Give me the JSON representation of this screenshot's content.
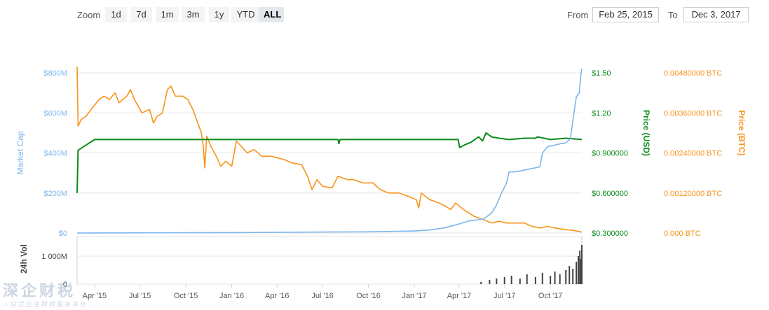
{
  "toolbar": {
    "zoom_label": "Zoom",
    "zoom_buttons": [
      "1d",
      "7d",
      "1m",
      "3m",
      "1y",
      "YTD",
      "ALL"
    ],
    "active_zoom": "ALL",
    "from_label": "From",
    "from_value": "Feb 25, 2015",
    "to_label": "To",
    "to_value": "Dec 3, 2017"
  },
  "watermark": {
    "big": "深企财税",
    "small": "一站式企业财税服务平台"
  },
  "chart_data": {
    "type": "line",
    "x_start": "2015-02-25",
    "x_end": "2017-12-03",
    "x_ticks": [
      {
        "date": "2015-04-01",
        "label": "Apr '15"
      },
      {
        "date": "2015-07-01",
        "label": "Jul '15"
      },
      {
        "date": "2015-10-01",
        "label": "Oct '15"
      },
      {
        "date": "2016-01-01",
        "label": "Jan '16"
      },
      {
        "date": "2016-04-01",
        "label": "Apr '16"
      },
      {
        "date": "2016-07-01",
        "label": "Jul '16"
      },
      {
        "date": "2016-10-01",
        "label": "Oct '16"
      },
      {
        "date": "2017-01-01",
        "label": "Jan '17"
      },
      {
        "date": "2017-04-01",
        "label": "Apr '17"
      },
      {
        "date": "2017-07-01",
        "label": "Jul '17"
      },
      {
        "date": "2017-10-01",
        "label": "Oct '17"
      }
    ],
    "axes": {
      "market_cap": {
        "title": "Market Cap",
        "color": "#7cb5ec",
        "min": 0,
        "max": 800000000,
        "ticks": [
          {
            "value": 0,
            "label": "$0"
          },
          {
            "value": 200000000,
            "label": "$200M"
          },
          {
            "value": 400000000,
            "label": "$400M"
          },
          {
            "value": 600000000,
            "label": "$600M"
          },
          {
            "value": 800000000,
            "label": "$800M"
          }
        ]
      },
      "price_usd": {
        "title": "Price (USD)",
        "color": "#0c8a19",
        "min": 0.3,
        "max": 1.5,
        "ticks": [
          {
            "value": 0.3,
            "label": "$0.300000"
          },
          {
            "value": 0.6,
            "label": "$0.600000"
          },
          {
            "value": 0.9,
            "label": "$0.900000"
          },
          {
            "value": 1.2,
            "label": "$1.20"
          },
          {
            "value": 1.5,
            "label": "$1.50"
          }
        ]
      },
      "price_btc": {
        "title": "Price (BTC)",
        "color": "#f7931a",
        "min": 0,
        "max": 0.0048,
        "ticks": [
          {
            "value": 0,
            "label": "0.000 BTC"
          },
          {
            "value": 0.0012,
            "label": "0.00120000 BTC"
          },
          {
            "value": 0.0024,
            "label": "0.00240000 BTC"
          },
          {
            "value": 0.0036,
            "label": "0.00360000 BTC"
          },
          {
            "value": 0.0048,
            "label": "0.00480000 BTC"
          }
        ]
      },
      "volume": {
        "title": "24h Vol",
        "color": "#444444",
        "min": 0,
        "max": 1500000000,
        "ticks": [
          {
            "value": 0,
            "label": "0"
          },
          {
            "value": 1000000000,
            "label": "1 000M"
          }
        ]
      }
    },
    "series": [
      {
        "key": "price_btc",
        "color": "#f7931a",
        "points": [
          [
            "2015-02-25",
            0.00498
          ],
          [
            "2015-02-27",
            0.0032
          ],
          [
            "2015-03-05",
            0.0034
          ],
          [
            "2015-03-15",
            0.0035
          ],
          [
            "2015-03-25",
            0.0037
          ],
          [
            "2015-04-10",
            0.004
          ],
          [
            "2015-04-20",
            0.0041
          ],
          [
            "2015-05-01",
            0.004
          ],
          [
            "2015-05-12",
            0.0042
          ],
          [
            "2015-05-20",
            0.0039
          ],
          [
            "2015-06-05",
            0.0041
          ],
          [
            "2015-06-12",
            0.0043
          ],
          [
            "2015-06-20",
            0.004
          ],
          [
            "2015-07-05",
            0.0036
          ],
          [
            "2015-07-20",
            0.0037
          ],
          [
            "2015-07-28",
            0.0033
          ],
          [
            "2015-08-05",
            0.0035
          ],
          [
            "2015-08-15",
            0.0036
          ],
          [
            "2015-08-25",
            0.0043
          ],
          [
            "2015-09-01",
            0.0044
          ],
          [
            "2015-09-10",
            0.0041
          ],
          [
            "2015-09-25",
            0.0041
          ],
          [
            "2015-10-05",
            0.004
          ],
          [
            "2015-10-15",
            0.0037
          ],
          [
            "2015-10-25",
            0.0033
          ],
          [
            "2015-11-01",
            0.003
          ],
          [
            "2015-11-05",
            0.0026
          ],
          [
            "2015-11-08",
            0.00195
          ],
          [
            "2015-11-12",
            0.0029
          ],
          [
            "2015-11-20",
            0.0026
          ],
          [
            "2015-12-01",
            0.0023
          ],
          [
            "2015-12-10",
            0.002
          ],
          [
            "2015-12-20",
            0.00215
          ],
          [
            "2016-01-01",
            0.002
          ],
          [
            "2016-01-10",
            0.00275
          ],
          [
            "2016-01-20",
            0.0026
          ],
          [
            "2016-02-01",
            0.0024
          ],
          [
            "2016-02-15",
            0.0025
          ],
          [
            "2016-03-01",
            0.0023
          ],
          [
            "2016-03-20",
            0.0023
          ],
          [
            "2016-04-15",
            0.0022
          ],
          [
            "2016-05-01",
            0.0021
          ],
          [
            "2016-05-20",
            0.00205
          ],
          [
            "2016-06-01",
            0.0017
          ],
          [
            "2016-06-10",
            0.0013
          ],
          [
            "2016-06-20",
            0.0016
          ],
          [
            "2016-07-01",
            0.0014
          ],
          [
            "2016-07-20",
            0.00135
          ],
          [
            "2016-08-01",
            0.0017
          ],
          [
            "2016-08-20",
            0.0016
          ],
          [
            "2016-09-01",
            0.0016
          ],
          [
            "2016-09-20",
            0.0015
          ],
          [
            "2016-10-10",
            0.0015
          ],
          [
            "2016-10-25",
            0.0013
          ],
          [
            "2016-11-10",
            0.0012
          ],
          [
            "2016-12-01",
            0.0012
          ],
          [
            "2016-12-20",
            0.0011
          ],
          [
            "2017-01-05",
            0.001
          ],
          [
            "2017-01-10",
            0.00075
          ],
          [
            "2017-01-15",
            0.0012
          ],
          [
            "2017-02-01",
            0.001
          ],
          [
            "2017-02-20",
            0.0009
          ],
          [
            "2017-03-05",
            0.0008
          ],
          [
            "2017-03-15",
            0.0007
          ],
          [
            "2017-03-25",
            0.0009
          ],
          [
            "2017-04-10",
            0.0007
          ],
          [
            "2017-05-01",
            0.0005
          ],
          [
            "2017-05-20",
            0.0004
          ],
          [
            "2017-06-05",
            0.0003
          ],
          [
            "2017-06-20",
            0.00035
          ],
          [
            "2017-07-05",
            0.0003
          ],
          [
            "2017-07-20",
            0.0003
          ],
          [
            "2017-08-10",
            0.0003
          ],
          [
            "2017-08-25",
            0.0002
          ],
          [
            "2017-09-10",
            0.00015
          ],
          [
            "2017-09-25",
            0.0002
          ],
          [
            "2017-10-10",
            0.00015
          ],
          [
            "2017-11-01",
            0.0001
          ],
          [
            "2017-11-15",
            8e-05
          ],
          [
            "2017-12-03",
            3e-05
          ]
        ]
      },
      {
        "key": "price_usd",
        "color": "#0c8a19",
        "points": [
          [
            "2015-02-25",
            0.6
          ],
          [
            "2015-02-27",
            0.92
          ],
          [
            "2015-04-01",
            1.0
          ],
          [
            "2015-07-01",
            1.0
          ],
          [
            "2015-10-01",
            1.0
          ],
          [
            "2016-01-01",
            1.0
          ],
          [
            "2016-04-01",
            1.0
          ],
          [
            "2016-07-01",
            1.0
          ],
          [
            "2016-08-01",
            1.0
          ],
          [
            "2016-08-03",
            0.97
          ],
          [
            "2016-08-05",
            1.0
          ],
          [
            "2016-10-01",
            1.0
          ],
          [
            "2017-01-01",
            1.0
          ],
          [
            "2017-03-01",
            1.0
          ],
          [
            "2017-03-30",
            1.0
          ],
          [
            "2017-04-02",
            0.94
          ],
          [
            "2017-04-12",
            0.96
          ],
          [
            "2017-04-25",
            0.98
          ],
          [
            "2017-05-10",
            1.02
          ],
          [
            "2017-05-18",
            0.99
          ],
          [
            "2017-05-25",
            1.05
          ],
          [
            "2017-06-05",
            1.02
          ],
          [
            "2017-06-20",
            1.01
          ],
          [
            "2017-07-10",
            1.0
          ],
          [
            "2017-08-10",
            1.01
          ],
          [
            "2017-09-01",
            1.01
          ],
          [
            "2017-09-05",
            1.02
          ],
          [
            "2017-10-01",
            1.0
          ],
          [
            "2017-11-01",
            1.01
          ],
          [
            "2017-12-03",
            1.0
          ]
        ]
      },
      {
        "key": "market_cap",
        "color": "#7cb5ec",
        "points": [
          [
            "2015-02-25",
            0
          ],
          [
            "2016-01-01",
            2000000
          ],
          [
            "2016-07-01",
            5000000
          ],
          [
            "2016-10-01",
            6000000
          ],
          [
            "2017-01-01",
            10000000
          ],
          [
            "2017-02-01",
            15000000
          ],
          [
            "2017-03-01",
            25000000
          ],
          [
            "2017-04-01",
            45000000
          ],
          [
            "2017-04-20",
            60000000
          ],
          [
            "2017-05-20",
            70000000
          ],
          [
            "2017-06-05",
            100000000
          ],
          [
            "2017-06-15",
            140000000
          ],
          [
            "2017-06-25",
            200000000
          ],
          [
            "2017-07-05",
            250000000
          ],
          [
            "2017-07-10",
            305000000
          ],
          [
            "2017-07-20",
            305000000
          ],
          [
            "2017-08-01",
            310000000
          ],
          [
            "2017-09-10",
            330000000
          ],
          [
            "2017-09-15",
            400000000
          ],
          [
            "2017-09-25",
            430000000
          ],
          [
            "2017-10-20",
            445000000
          ],
          [
            "2017-11-01",
            450000000
          ],
          [
            "2017-11-10",
            470000000
          ],
          [
            "2017-11-15",
            560000000
          ],
          [
            "2017-11-22",
            680000000
          ],
          [
            "2017-11-28",
            700000000
          ],
          [
            "2017-12-01",
            790000000
          ],
          [
            "2017-12-03",
            820000000
          ]
        ]
      },
      {
        "key": "volume",
        "color": "#444444",
        "type": "bar",
        "points": [
          [
            "2017-05-15",
            80000000
          ],
          [
            "2017-06-01",
            150000000
          ],
          [
            "2017-06-15",
            200000000
          ],
          [
            "2017-07-01",
            250000000
          ],
          [
            "2017-07-15",
            300000000
          ],
          [
            "2017-08-01",
            200000000
          ],
          [
            "2017-08-15",
            350000000
          ],
          [
            "2017-09-01",
            250000000
          ],
          [
            "2017-09-15",
            400000000
          ],
          [
            "2017-10-01",
            300000000
          ],
          [
            "2017-10-10",
            450000000
          ],
          [
            "2017-10-20",
            350000000
          ],
          [
            "2017-11-01",
            500000000
          ],
          [
            "2017-11-08",
            650000000
          ],
          [
            "2017-11-15",
            550000000
          ],
          [
            "2017-11-22",
            800000000
          ],
          [
            "2017-11-26",
            1000000000
          ],
          [
            "2017-11-29",
            1200000000
          ],
          [
            "2017-12-01",
            900000000
          ],
          [
            "2017-12-03",
            1400000000
          ]
        ]
      }
    ]
  }
}
